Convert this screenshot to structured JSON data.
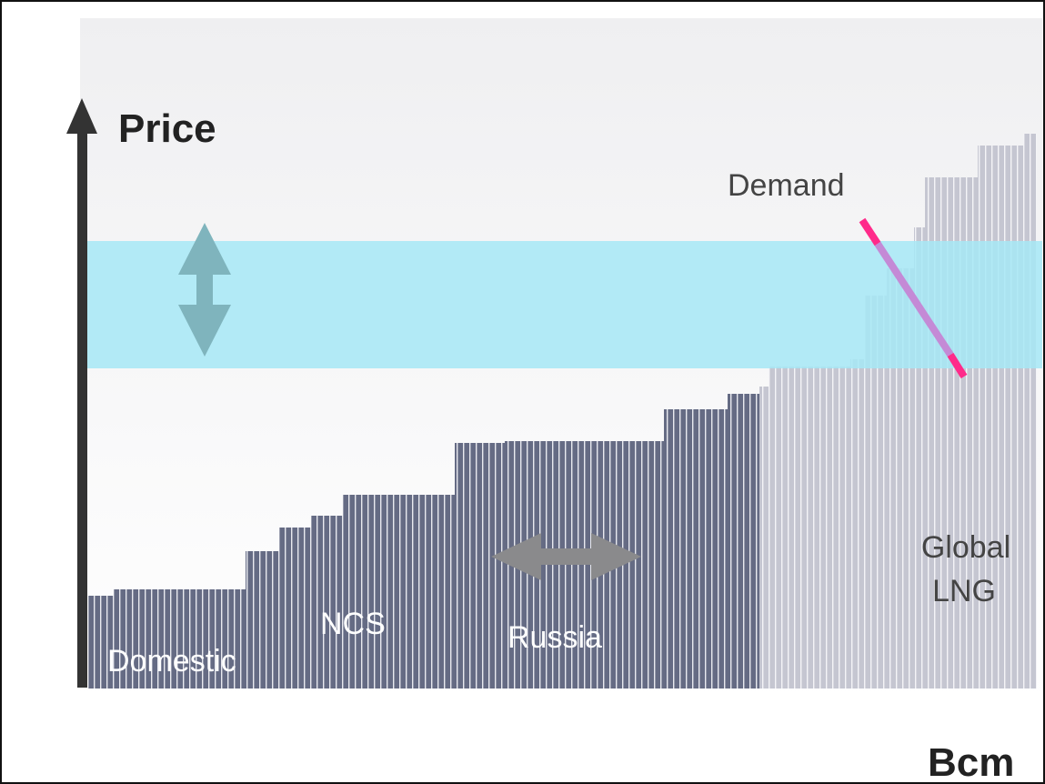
{
  "axis": {
    "y_label": "Price",
    "x_label": "Bcm"
  },
  "labels": {
    "demand": "Demand",
    "domestic": "Domestic",
    "ncs": "NCS",
    "russia": "Russia",
    "global_lng": [
      "Global",
      "LNG"
    ]
  }
}
